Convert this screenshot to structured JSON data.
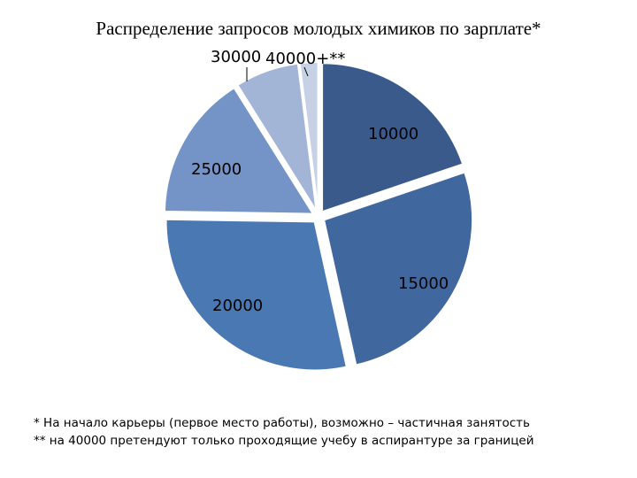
{
  "chart_data": {
    "type": "pie",
    "title": "Распределение запросов молодых химиков по зарплате*",
    "categories": [
      "10000",
      "15000",
      "20000",
      "25000",
      "30000",
      "40000+**"
    ],
    "values": [
      20,
      27,
      29,
      16,
      7,
      2
    ],
    "colors": [
      "#3a5a8c",
      "#41689e",
      "#4a78b3",
      "#7494c7",
      "#a3b5d6",
      "#c7d1e6"
    ],
    "legend": "none"
  },
  "footnotes": {
    "note1": "* На начало карьеры (первое место работы), возможно – частичная занятость",
    "note2": "** на 40000 претендуют только проходящие учебу в аспирантуре за границей"
  }
}
